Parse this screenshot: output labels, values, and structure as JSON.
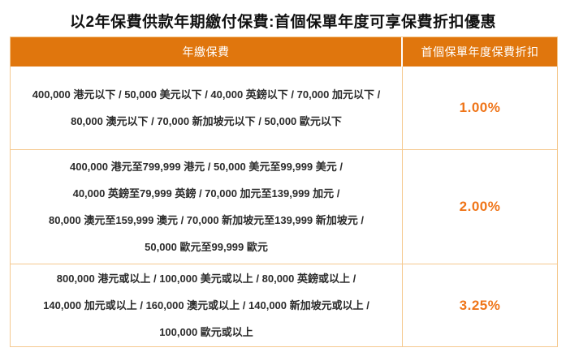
{
  "title": "以2年保費供款年期繳付保費:首個保單年度可享保費折扣優惠",
  "colors": {
    "header_background": "#E0760D",
    "discount_text": "#EF7519",
    "table_border": "#F5C98F",
    "body_text": "#2b2b2b",
    "header_text": "#ffffff"
  },
  "table": {
    "headers": [
      "年繳保費",
      "首個保單年度保費折扣"
    ],
    "rows": [
      {
        "premium_lines": [
          "400,000 港元以下 / 50,000 美元以下 / 40,000 英鎊以下 / 70,000 加元以下 /",
          "80,000 澳元以下 / 70,000 新加坡元以下 / 50,000 歐元以下"
        ],
        "discount": "1.00%"
      },
      {
        "premium_lines": [
          "400,000 港元至799,999 港元 / 50,000 美元至99,999 美元 /",
          "40,000 英鎊至79,999 英鎊 / 70,000 加元至139,999 加元 /",
          "80,000 澳元至159,999 澳元 / 70,000 新加坡元至139,999 新加坡元 /",
          "50,000 歐元至99,999 歐元"
        ],
        "discount": "2.00%"
      },
      {
        "premium_lines": [
          "800,000 港元或以上 / 100,000 美元或以上 / 80,000 英鎊或以上 /",
          "140,000 加元或以上 / 160,000 澳元或以上 / 140,000 新加坡元或以上 /",
          "100,000 歐元或以上"
        ],
        "discount": "3.25%"
      }
    ]
  }
}
